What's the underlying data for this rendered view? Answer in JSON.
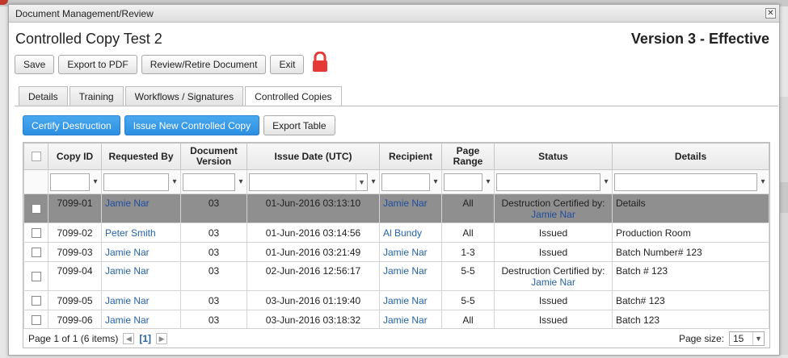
{
  "dialog": {
    "title": "Document Management/Review",
    "close_icon": "close-icon",
    "doc_title": "Controlled Copy Test 2",
    "version_status": "Version 3 - Effective"
  },
  "toolbar": {
    "save": "Save",
    "export_pdf": "Export to PDF",
    "review_retire": "Review/Retire Document",
    "exit": "Exit",
    "lock_icon": "lock-icon"
  },
  "tabs": [
    "Details",
    "Training",
    "Workflows / Signatures",
    "Controlled Copies"
  ],
  "actions": {
    "certify": "Certify Destruction",
    "issue_new": "Issue New Controlled Copy",
    "export_table": "Export Table"
  },
  "table": {
    "headers": [
      "Copy ID",
      "Requested By",
      "Document Version",
      "Issue Date (UTC)",
      "Recipient",
      "Page Range",
      "Status",
      "Details"
    ],
    "rows": [
      {
        "id": "7099-01",
        "req": "Jamie Nar",
        "ver": "03",
        "date": "01-Jun-2016 03:13:10",
        "rec": "Jamie Nar",
        "range": "All",
        "status": "Destruction Certified by:",
        "status_by": "Jamie Nar",
        "details": "Details"
      },
      {
        "id": "7099-02",
        "req": "Peter Smith",
        "ver": "03",
        "date": "01-Jun-2016 03:14:56",
        "rec": "Al Bundy",
        "range": "All",
        "status": "Issued",
        "status_by": "",
        "details": "Production Room"
      },
      {
        "id": "7099-03",
        "req": "Jamie Nar",
        "ver": "03",
        "date": "01-Jun-2016 03:21:49",
        "rec": "Jamie Nar",
        "range": "1-3",
        "status": "Issued",
        "status_by": "",
        "details": "Batch Number# 123"
      },
      {
        "id": "7099-04",
        "req": "Jamie Nar",
        "ver": "03",
        "date": "02-Jun-2016 12:56:17",
        "rec": "Jamie Nar",
        "range": "5-5",
        "status": "Destruction Certified by:",
        "status_by": "Jamie Nar",
        "details": "Batch # 123"
      },
      {
        "id": "7099-05",
        "req": "Jamie Nar",
        "ver": "03",
        "date": "03-Jun-2016 01:19:40",
        "rec": "Jamie Nar",
        "range": "5-5",
        "status": "Issued",
        "status_by": "",
        "details": "Batch# 123"
      },
      {
        "id": "7099-06",
        "req": "Jamie Nar",
        "ver": "03",
        "date": "03-Jun-2016 03:18:32",
        "rec": "Jamie Nar",
        "range": "All",
        "status": "Issued",
        "status_by": "",
        "details": "Batch 123"
      }
    ]
  },
  "pager": {
    "summary": "Page 1 of 1 (6 items)",
    "current": "[1]",
    "size_label": "Page size:",
    "size_value": "15"
  },
  "colors": {
    "accent": "#2b8ee0",
    "link": "#2563a8",
    "selected_row": "#8f8f8f",
    "lock": "#e53935"
  }
}
